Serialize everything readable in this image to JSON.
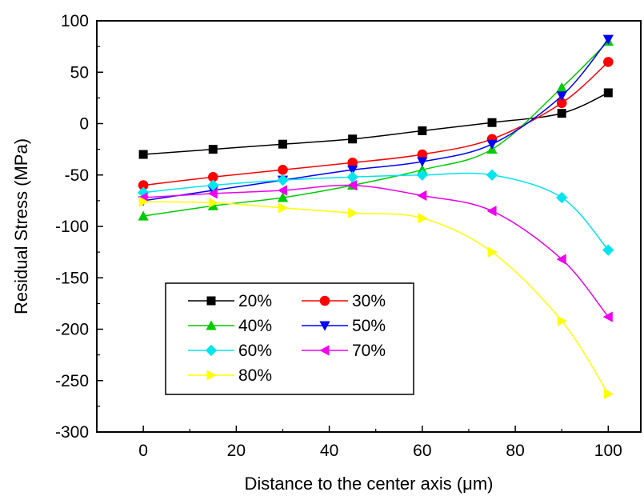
{
  "chart_data": {
    "type": "line",
    "title": "",
    "xlabel": "Distance to the center axis (μm)",
    "ylabel": "Residual Stress (MPa)",
    "xlim": [
      -10,
      107
    ],
    "ylim": [
      -300,
      100
    ],
    "x_ticks": [
      0,
      20,
      40,
      60,
      80,
      100
    ],
    "y_ticks": [
      -300,
      -250,
      -200,
      -150,
      -100,
      -50,
      0,
      50,
      100
    ],
    "x": [
      0,
      15,
      30,
      45,
      60,
      75,
      90,
      100
    ],
    "grid": false,
    "legend_position": "lower-left",
    "series": [
      {
        "name": "20%",
        "color": "#000000",
        "marker": "square",
        "values": [
          -30,
          -25,
          -20,
          -15,
          -7,
          1,
          10,
          30
        ]
      },
      {
        "name": "30%",
        "color": "#ff0000",
        "marker": "circle",
        "values": [
          -60,
          -52,
          -45,
          -38,
          -30,
          -15,
          20,
          60
        ]
      },
      {
        "name": "40%",
        "color": "#00cc00",
        "marker": "triangle-up",
        "values": [
          -90,
          -80,
          -72,
          -60,
          -45,
          -25,
          35,
          80
        ]
      },
      {
        "name": "50%",
        "color": "#0000ff",
        "marker": "triangle-down",
        "values": [
          -75,
          -65,
          -55,
          -45,
          -37,
          -20,
          27,
          82
        ]
      },
      {
        "name": "60%",
        "color": "#00e5ee",
        "marker": "diamond",
        "values": [
          -67,
          -60,
          -55,
          -52,
          -50,
          -50,
          -72,
          -123
        ]
      },
      {
        "name": "70%",
        "color": "#ee00ee",
        "marker": "triangle-left",
        "values": [
          -72,
          -68,
          -65,
          -60,
          -70,
          -85,
          -132,
          -188
        ]
      },
      {
        "name": "80%",
        "color": "#ffff00",
        "marker": "triangle-right",
        "values": [
          -76,
          -77,
          -82,
          -87,
          -92,
          -125,
          -192,
          -263
        ]
      }
    ]
  }
}
